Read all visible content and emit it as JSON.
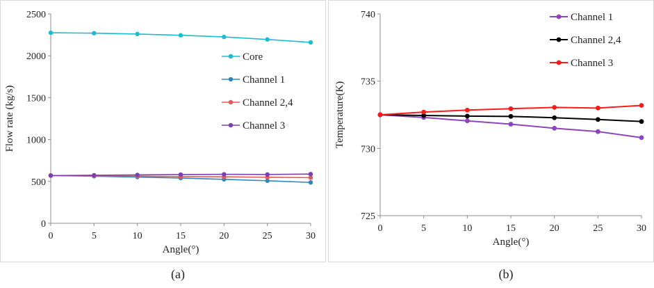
{
  "chart_data": [
    {
      "type": "line",
      "title": "",
      "xlabel": "Angle(°)",
      "ylabel": "Flow rate (kg/s)",
      "x": [
        0,
        5,
        10,
        15,
        20,
        25,
        30
      ],
      "xlim": [
        0,
        30
      ],
      "ylim": [
        0,
        2500
      ],
      "xticks": [
        "0",
        "5",
        "10",
        "15",
        "20",
        "25",
        "30"
      ],
      "yticks": [
        "0",
        "500",
        "1000",
        "1500",
        "2000",
        "2500"
      ],
      "legend": "right",
      "series": [
        {
          "name": "Core",
          "color": "#17becf",
          "values": [
            2275,
            2270,
            2260,
            2245,
            2225,
            2195,
            2160
          ]
        },
        {
          "name": "Channel 1",
          "color": "#2e86c1",
          "values": [
            570,
            562,
            552,
            540,
            525,
            508,
            488
          ]
        },
        {
          "name": "Channel 2,4",
          "color": "#e05a5a",
          "values": [
            570,
            566,
            562,
            558,
            555,
            550,
            545
          ]
        },
        {
          "name": "Channel 3",
          "color": "#7b3fb0",
          "values": [
            570,
            574,
            578,
            582,
            585,
            583,
            588
          ]
        }
      ]
    },
    {
      "type": "line",
      "title": "",
      "xlabel": "Angle(°)",
      "ylabel": "Temperature(K)",
      "x": [
        0,
        5,
        10,
        15,
        20,
        25,
        30
      ],
      "xlim": [
        0,
        30
      ],
      "ylim": [
        725,
        740
      ],
      "xticks": [
        "0",
        "5",
        "10",
        "15",
        "20",
        "25",
        "30"
      ],
      "yticks": [
        "725",
        "730",
        "735",
        "740"
      ],
      "legend": "top-right",
      "series": [
        {
          "name": "Channel 1",
          "color": "#8e44c0",
          "values": [
            732.5,
            732.3,
            732.05,
            731.8,
            731.5,
            731.25,
            730.8
          ]
        },
        {
          "name": "Channel 2,4",
          "color": "#000000",
          "values": [
            732.5,
            732.45,
            732.4,
            732.38,
            732.28,
            732.15,
            732.0
          ]
        },
        {
          "name": "Channel 3",
          "color": "#ff1a1a",
          "values": [
            732.5,
            732.7,
            732.85,
            732.95,
            733.05,
            733.0,
            733.2
          ]
        }
      ]
    }
  ],
  "captions": {
    "a": "(a)",
    "b": "(b)"
  }
}
